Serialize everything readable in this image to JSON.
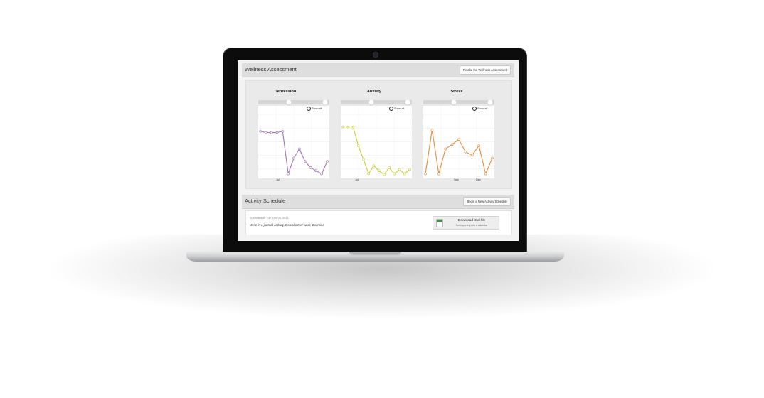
{
  "wellness": {
    "title": "Wellness Assessment",
    "retake_label": "Retake the Wellness Assessment",
    "show_all_label": "Show all"
  },
  "chart_data": [
    {
      "type": "line",
      "title": "Depression",
      "color": "#a173b4",
      "x_tick_labels": [
        "Jul"
      ],
      "y_grid": true,
      "series": [
        {
          "values": [
            73,
            71,
            71,
            71,
            73,
            5,
            30,
            45,
            25,
            15,
            10,
            5,
            25
          ]
        }
      ]
    },
    {
      "type": "line",
      "title": "Anxiety",
      "color": "#c9cf2e",
      "x_tick_labels": [
        "Jul"
      ],
      "y_grid": true,
      "series": [
        {
          "values": [
            80,
            80,
            80,
            50,
            28,
            5,
            18,
            10,
            4,
            15,
            5,
            12,
            5,
            12
          ]
        }
      ]
    },
    {
      "type": "line",
      "title": "Stress",
      "color": "#e68b3e",
      "x_tick_labels": [
        "Sep",
        "Dec"
      ],
      "y_grid": true,
      "series": [
        {
          "values": [
            5,
            75,
            5,
            45,
            52,
            60,
            40,
            35,
            50,
            5,
            30
          ]
        }
      ]
    }
  ],
  "activity": {
    "title": "Activity Schedule",
    "begin_label": "Begin a New Activity Schedule",
    "submitted": "Submitted on Tue, Dec 06, 2016",
    "activities": "Write in a journal or blog, Do volunteer work, Exercise",
    "download_label": "Download iCal file",
    "download_sub": "For importing into a calendar"
  },
  "icons": [
    "magnifier-icon",
    "calendar-icon",
    "range-handle-icon",
    "camera-icon"
  ]
}
